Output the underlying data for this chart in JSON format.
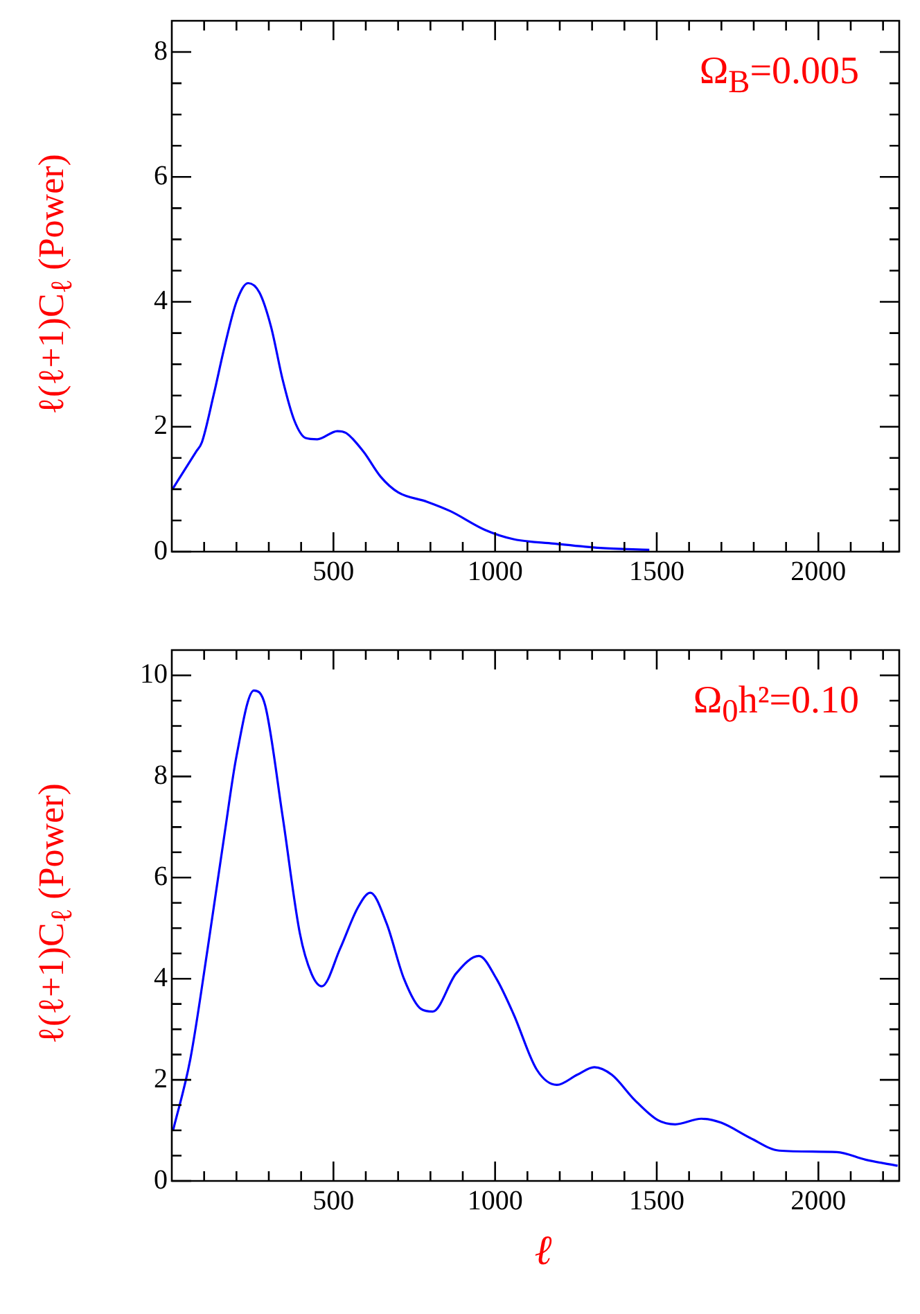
{
  "chart_data": [
    {
      "type": "line",
      "ylabel": "ℓ(ℓ+1)C$_{ℓ}$ (Power)",
      "annotations": [
        "Ω$_{B}$=0.005"
      ],
      "marker": "none",
      "xlim": [
        0,
        2250
      ],
      "ylim": [
        0,
        8.5
      ],
      "xticks": [
        {
          "value": 100,
          "label": null
        },
        {
          "value": 200,
          "label": null
        },
        {
          "value": 300,
          "label": null
        },
        {
          "value": 400,
          "label": null
        },
        500,
        {
          "value": 600,
          "label": null
        },
        {
          "value": 700,
          "label": null
        },
        {
          "value": 800,
          "label": null
        },
        {
          "value": 900,
          "label": null
        },
        1000,
        {
          "value": 1100,
          "label": null
        },
        {
          "value": 1200,
          "label": null
        },
        {
          "value": 1300,
          "label": null
        },
        {
          "value": 1400,
          "label": null
        },
        1500,
        {
          "value": 1600,
          "label": null
        },
        {
          "value": 1700,
          "label": null
        },
        {
          "value": 1800,
          "label": null
        },
        {
          "value": 1900,
          "label": null
        },
        2000,
        {
          "value": 2100,
          "label": null
        },
        {
          "value": 2200,
          "label": null
        }
      ],
      "yticks": [
        0,
        {
          "value": 0.5,
          "label": null
        },
        {
          "value": 1,
          "label": null
        },
        {
          "value": 1.5,
          "label": null
        },
        2,
        {
          "value": 2.5,
          "label": null
        },
        {
          "value": 3,
          "label": null
        },
        {
          "value": 3.5,
          "label": null
        },
        4,
        {
          "value": 4.5,
          "label": null
        },
        {
          "value": 5,
          "label": null
        },
        {
          "value": 5.5,
          "label": null
        },
        6,
        {
          "value": 6.5,
          "label": null
        },
        {
          "value": 7,
          "label": null
        },
        {
          "value": 7.5,
          "label": null
        },
        8
      ],
      "x": [
        2,
        75,
        93,
        129,
        164,
        200,
        236,
        271,
        307,
        343,
        379,
        414,
        450,
        512,
        539,
        593,
        646,
        700,
        789,
        861,
        968,
        1057,
        1182,
        1325,
        1477
      ],
      "series": [
        {
          "color": "#0000ff",
          "values": [
            1.0,
            1.6,
            1.75,
            2.5,
            3.3,
            4.0,
            4.3,
            4.15,
            3.6,
            2.75,
            2.1,
            1.82,
            1.8,
            1.93,
            1.9,
            1.6,
            1.2,
            0.95,
            0.8,
            0.65,
            0.35,
            0.2,
            0.13,
            0.06,
            0.03
          ]
        }
      ]
    },
    {
      "type": "line",
      "ylabel": "ℓ(ℓ+1)C$_{ℓ}$ (Power)",
      "xlabel": "ℓ",
      "annotations": [
        "Ω$_{0}$h²=0.10"
      ],
      "marker": "none",
      "xlim": [
        0,
        2250
      ],
      "ylim": [
        0,
        10.5
      ],
      "xticks": [
        {
          "value": 100,
          "label": null
        },
        {
          "value": 200,
          "label": null
        },
        {
          "value": 300,
          "label": null
        },
        {
          "value": 400,
          "label": null
        },
        500,
        {
          "value": 600,
          "label": null
        },
        {
          "value": 700,
          "label": null
        },
        {
          "value": 800,
          "label": null
        },
        {
          "value": 900,
          "label": null
        },
        1000,
        {
          "value": 1100,
          "label": null
        },
        {
          "value": 1200,
          "label": null
        },
        {
          "value": 1300,
          "label": null
        },
        {
          "value": 1400,
          "label": null
        },
        1500,
        {
          "value": 1600,
          "label": null
        },
        {
          "value": 1700,
          "label": null
        },
        {
          "value": 1800,
          "label": null
        },
        {
          "value": 1900,
          "label": null
        },
        2000,
        {
          "value": 2100,
          "label": null
        },
        {
          "value": 2200,
          "label": null
        }
      ],
      "yticks": [
        0,
        {
          "value": 0.5,
          "label": null
        },
        {
          "value": 1,
          "label": null
        },
        {
          "value": 1.5,
          "label": null
        },
        2,
        {
          "value": 2.5,
          "label": null
        },
        {
          "value": 3,
          "label": null
        },
        {
          "value": 3.5,
          "label": null
        },
        4,
        {
          "value": 4.5,
          "label": null
        },
        {
          "value": 5,
          "label": null
        },
        {
          "value": 5.5,
          "label": null
        },
        6,
        {
          "value": 6.5,
          "label": null
        },
        {
          "value": 7,
          "label": null
        },
        {
          "value": 7.5,
          "label": null
        },
        8,
        {
          "value": 8.5,
          "label": null
        },
        {
          "value": 9,
          "label": null
        },
        {
          "value": 9.5,
          "label": null
        },
        10
      ],
      "x": [
        4,
        57,
        111,
        164,
        200,
        254,
        289,
        343,
        396,
        432,
        464,
        521,
        575,
        614,
        664,
        718,
        771,
        807,
        879,
        950,
        1004,
        1057,
        1129,
        1191,
        1254,
        1307,
        1361,
        1432,
        1504,
        1557,
        1638,
        1700,
        1789,
        1879,
        2057,
        2146,
        2245
      ],
      "series": [
        {
          "color": "#0000ff",
          "values": [
            1.0,
            2.4,
            4.6,
            6.9,
            8.4,
            9.7,
            9.4,
            7.2,
            4.9,
            4.1,
            3.85,
            4.6,
            5.4,
            5.7,
            5.1,
            4.0,
            3.4,
            3.35,
            4.1,
            4.45,
            4.0,
            3.3,
            2.2,
            1.9,
            2.1,
            2.25,
            2.1,
            1.6,
            1.2,
            1.12,
            1.23,
            1.15,
            0.85,
            0.6,
            0.57,
            0.42,
            0.3
          ]
        }
      ]
    }
  ]
}
